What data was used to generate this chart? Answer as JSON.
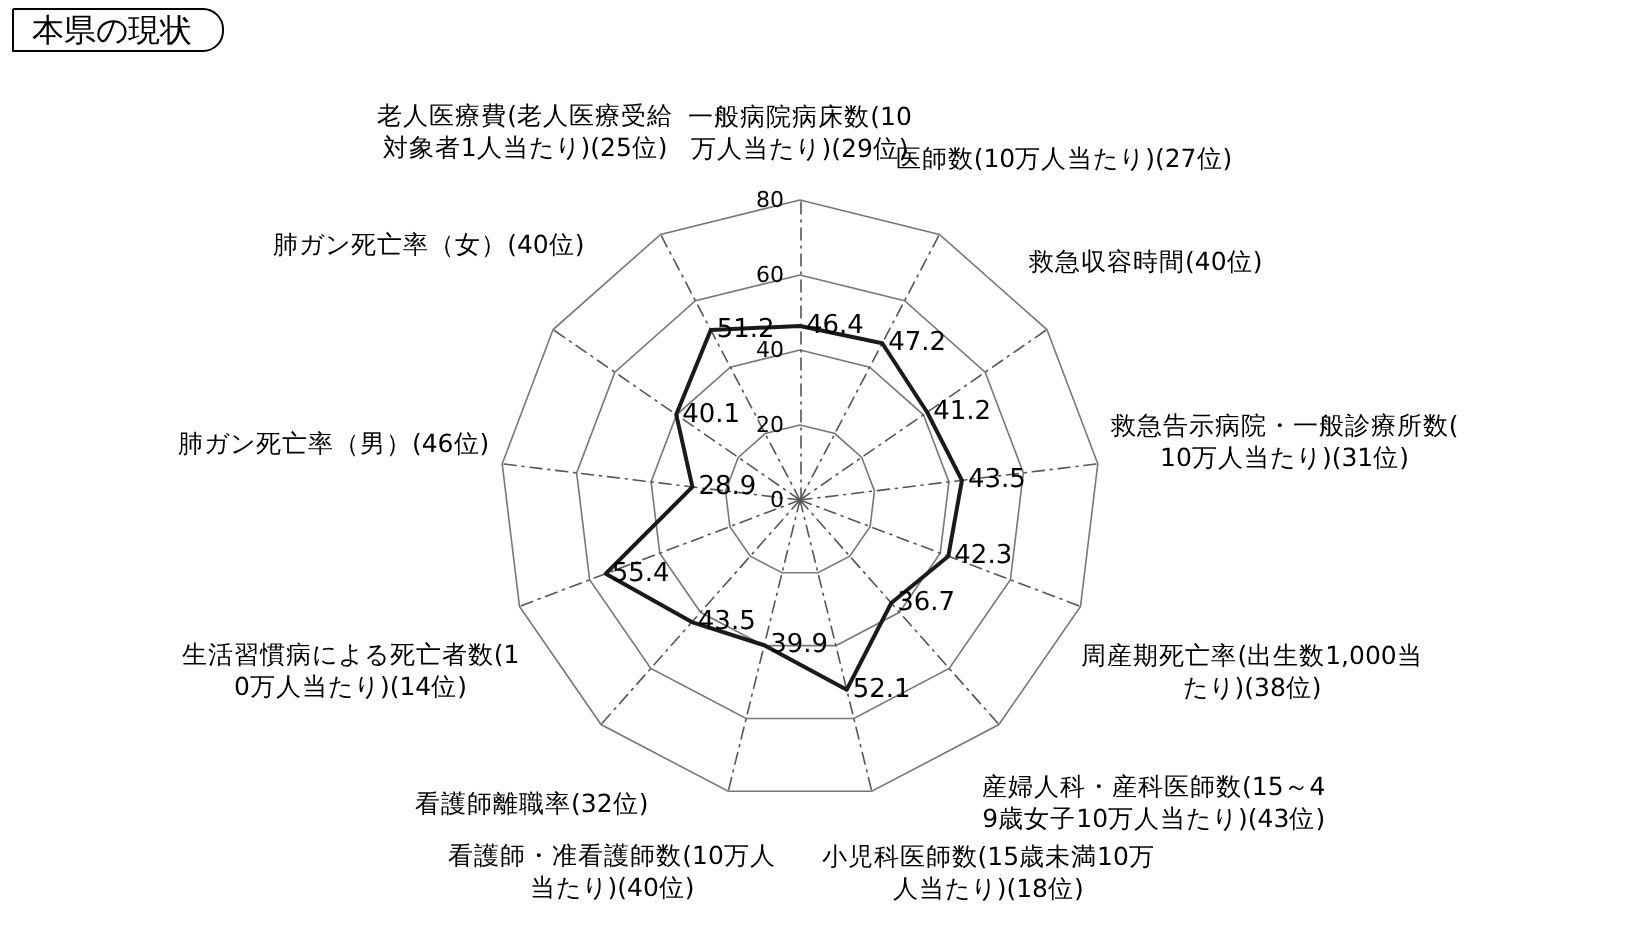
{
  "chart_data": {
    "type": "radar",
    "title": "本県の現状",
    "categories": [
      "一般病院病床数(10万人当たり)(29位)",
      "医師数(10万人当たり)(27位)",
      "救急収容時間(40位)",
      "救急告示病院・一般診療所数(10万人当たり)(31位)",
      "周産期死亡率(出生数1,000当たり)(38位)",
      "産婦人科・産科医師数(15～49歳女子10万人当たり)(43位)",
      "小児科医師数(15歳未満10万人当たり)(18位)",
      "看護師・准看護師数(10万人当たり)(40位)",
      "看護師離職率(32位)",
      "生活習慣病による死亡者数(10万人当たり)(14位)",
      "肺ガン死亡率（男）(46位)",
      "肺ガン死亡率（女）(40位)",
      "老人医療費(老人医療受給対象者1人当たり)(25位)"
    ],
    "series": [
      {
        "color": "#1a1a1a",
        "values": [
          46.4,
          47.2,
          41.2,
          43.5,
          42.3,
          36.7,
          52.1,
          39.9,
          43.5,
          55.4,
          28.9,
          40.1,
          51.2
        ]
      }
    ],
    "ylim": [
      0,
      80
    ],
    "yticks": [
      0,
      20,
      40,
      60,
      80
    ],
    "grid": true,
    "data_labels": true,
    "marker": "none",
    "line_style": "solid"
  }
}
